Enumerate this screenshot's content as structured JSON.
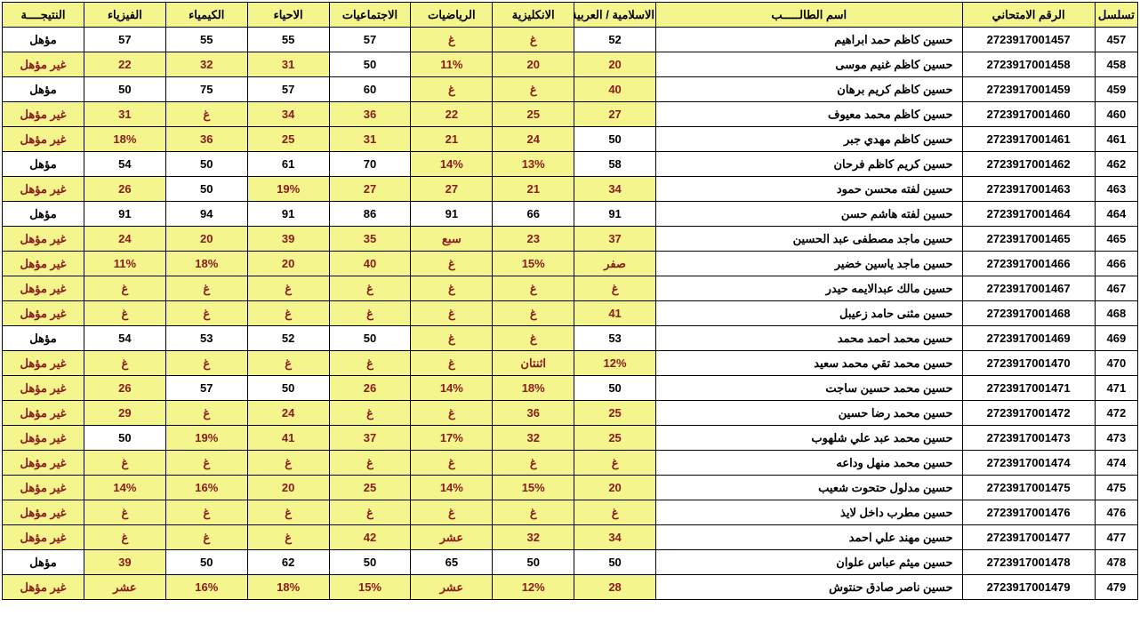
{
  "headers": {
    "serial": "تسلسل",
    "exam_no": "الرقم الامتحاني",
    "name": "اسم الطالـــــب",
    "islamic_arabic": "الاسلامية / العربية",
    "english": "الانكليزية",
    "math": "الرياضيات",
    "social": "الاجتماعيات",
    "biology": "الاحياء",
    "chemistry": "الكيمياء",
    "physics": "الفيزياء",
    "result": "النتيجــــة"
  },
  "rows": [
    {
      "serial": "457",
      "exam_no": "2723917001457",
      "name": "حسين كاظم حمد ابراهيم",
      "cells": [
        {
          "v": "52",
          "h": 0
        },
        {
          "v": "غ",
          "h": 1
        },
        {
          "v": "غ",
          "h": 1
        },
        {
          "v": "57",
          "h": 0
        },
        {
          "v": "55",
          "h": 0
        },
        {
          "v": "55",
          "h": 0
        },
        {
          "v": "57",
          "h": 0
        },
        {
          "v": "مؤهل",
          "h": 0
        }
      ]
    },
    {
      "serial": "458",
      "exam_no": "2723917001458",
      "name": "حسين كاظم غنيم موسى",
      "cells": [
        {
          "v": "20",
          "h": 1
        },
        {
          "v": "20",
          "h": 1
        },
        {
          "v": "11%",
          "h": 1
        },
        {
          "v": "50",
          "h": 0
        },
        {
          "v": "31",
          "h": 1
        },
        {
          "v": "32",
          "h": 1
        },
        {
          "v": "22",
          "h": 1
        },
        {
          "v": "غير مؤهل",
          "h": 1
        }
      ]
    },
    {
      "serial": "459",
      "exam_no": "2723917001459",
      "name": "حسين كاظم كريم برهان",
      "cells": [
        {
          "v": "40",
          "h": 1
        },
        {
          "v": "غ",
          "h": 1
        },
        {
          "v": "غ",
          "h": 1
        },
        {
          "v": "60",
          "h": 0
        },
        {
          "v": "57",
          "h": 0
        },
        {
          "v": "75",
          "h": 0
        },
        {
          "v": "50",
          "h": 0
        },
        {
          "v": "مؤهل",
          "h": 0
        }
      ]
    },
    {
      "serial": "460",
      "exam_no": "2723917001460",
      "name": "حسين كاظم محمد معيوف",
      "cells": [
        {
          "v": "27",
          "h": 1
        },
        {
          "v": "25",
          "h": 1
        },
        {
          "v": "22",
          "h": 1
        },
        {
          "v": "36",
          "h": 1
        },
        {
          "v": "34",
          "h": 1
        },
        {
          "v": "غ",
          "h": 1
        },
        {
          "v": "31",
          "h": 1
        },
        {
          "v": "غير مؤهل",
          "h": 1
        }
      ]
    },
    {
      "serial": "461",
      "exam_no": "2723917001461",
      "name": "حسين كاظم مهدي جبر",
      "cells": [
        {
          "v": "50",
          "h": 0
        },
        {
          "v": "24",
          "h": 1
        },
        {
          "v": "21",
          "h": 1
        },
        {
          "v": "31",
          "h": 1
        },
        {
          "v": "25",
          "h": 1
        },
        {
          "v": "36",
          "h": 1
        },
        {
          "v": "18%",
          "h": 1
        },
        {
          "v": "غير مؤهل",
          "h": 1
        }
      ]
    },
    {
      "serial": "462",
      "exam_no": "2723917001462",
      "name": "حسين كريم كاظم فرحان",
      "cells": [
        {
          "v": "58",
          "h": 0
        },
        {
          "v": "13%",
          "h": 1
        },
        {
          "v": "14%",
          "h": 1
        },
        {
          "v": "70",
          "h": 0
        },
        {
          "v": "61",
          "h": 0
        },
        {
          "v": "50",
          "h": 0
        },
        {
          "v": "54",
          "h": 0
        },
        {
          "v": "مؤهل",
          "h": 0
        }
      ]
    },
    {
      "serial": "463",
      "exam_no": "2723917001463",
      "name": "حسين لفته محسن حمود",
      "cells": [
        {
          "v": "34",
          "h": 1
        },
        {
          "v": "21",
          "h": 1
        },
        {
          "v": "27",
          "h": 1
        },
        {
          "v": "27",
          "h": 1
        },
        {
          "v": "19%",
          "h": 1
        },
        {
          "v": "50",
          "h": 0
        },
        {
          "v": "26",
          "h": 1
        },
        {
          "v": "غير مؤهل",
          "h": 1
        }
      ]
    },
    {
      "serial": "464",
      "exam_no": "2723917001464",
      "name": "حسين لفته هاشم حسن",
      "cells": [
        {
          "v": "91",
          "h": 0
        },
        {
          "v": "66",
          "h": 0
        },
        {
          "v": "91",
          "h": 0
        },
        {
          "v": "86",
          "h": 0
        },
        {
          "v": "91",
          "h": 0
        },
        {
          "v": "94",
          "h": 0
        },
        {
          "v": "91",
          "h": 0
        },
        {
          "v": "مؤهل",
          "h": 0
        }
      ]
    },
    {
      "serial": "465",
      "exam_no": "2723917001465",
      "name": "حسين ماجد مصطفى عبد الحسين",
      "cells": [
        {
          "v": "37",
          "h": 1
        },
        {
          "v": "23",
          "h": 1
        },
        {
          "v": "سبع",
          "h": 1
        },
        {
          "v": "35",
          "h": 1
        },
        {
          "v": "39",
          "h": 1
        },
        {
          "v": "20",
          "h": 1
        },
        {
          "v": "24",
          "h": 1
        },
        {
          "v": "غير مؤهل",
          "h": 1
        }
      ]
    },
    {
      "serial": "466",
      "exam_no": "2723917001466",
      "name": "حسين ماجد ياسين خضير",
      "cells": [
        {
          "v": "صفر",
          "h": 1
        },
        {
          "v": "15%",
          "h": 1
        },
        {
          "v": "غ",
          "h": 1
        },
        {
          "v": "40",
          "h": 1
        },
        {
          "v": "20",
          "h": 1
        },
        {
          "v": "18%",
          "h": 1
        },
        {
          "v": "11%",
          "h": 1
        },
        {
          "v": "غير مؤهل",
          "h": 1
        }
      ]
    },
    {
      "serial": "467",
      "exam_no": "2723917001467",
      "name": "حسين مالك عبدالايمه حيدر",
      "cells": [
        {
          "v": "غ",
          "h": 1
        },
        {
          "v": "غ",
          "h": 1
        },
        {
          "v": "غ",
          "h": 1
        },
        {
          "v": "غ",
          "h": 1
        },
        {
          "v": "غ",
          "h": 1
        },
        {
          "v": "غ",
          "h": 1
        },
        {
          "v": "غ",
          "h": 1
        },
        {
          "v": "غير مؤهل",
          "h": 1
        }
      ]
    },
    {
      "serial": "468",
      "exam_no": "2723917001468",
      "name": "حسين مثنى حامد زعيبل",
      "cells": [
        {
          "v": "41",
          "h": 1
        },
        {
          "v": "غ",
          "h": 1
        },
        {
          "v": "غ",
          "h": 1
        },
        {
          "v": "غ",
          "h": 1
        },
        {
          "v": "غ",
          "h": 1
        },
        {
          "v": "غ",
          "h": 1
        },
        {
          "v": "غ",
          "h": 1
        },
        {
          "v": "غير مؤهل",
          "h": 1
        }
      ]
    },
    {
      "serial": "469",
      "exam_no": "2723917001469",
      "name": "حسين محمد احمد محمد",
      "cells": [
        {
          "v": "53",
          "h": 0
        },
        {
          "v": "غ",
          "h": 1
        },
        {
          "v": "غ",
          "h": 1
        },
        {
          "v": "50",
          "h": 0
        },
        {
          "v": "52",
          "h": 0
        },
        {
          "v": "53",
          "h": 0
        },
        {
          "v": "54",
          "h": 0
        },
        {
          "v": "مؤهل",
          "h": 0
        }
      ]
    },
    {
      "serial": "470",
      "exam_no": "2723917001470",
      "name": "حسين محمد تقي محمد سعيد",
      "cells": [
        {
          "v": "12%",
          "h": 1
        },
        {
          "v": "اثنتان",
          "h": 1
        },
        {
          "v": "غ",
          "h": 1
        },
        {
          "v": "غ",
          "h": 1
        },
        {
          "v": "غ",
          "h": 1
        },
        {
          "v": "غ",
          "h": 1
        },
        {
          "v": "غ",
          "h": 1
        },
        {
          "v": "غير مؤهل",
          "h": 1
        }
      ]
    },
    {
      "serial": "471",
      "exam_no": "2723917001471",
      "name": "حسين محمد حسين ساجت",
      "cells": [
        {
          "v": "50",
          "h": 0
        },
        {
          "v": "18%",
          "h": 1
        },
        {
          "v": "14%",
          "h": 1
        },
        {
          "v": "26",
          "h": 1
        },
        {
          "v": "50",
          "h": 0
        },
        {
          "v": "57",
          "h": 0
        },
        {
          "v": "26",
          "h": 1
        },
        {
          "v": "غير مؤهل",
          "h": 1
        }
      ]
    },
    {
      "serial": "472",
      "exam_no": "2723917001472",
      "name": "حسين محمد رضا حسين",
      "cells": [
        {
          "v": "25",
          "h": 1
        },
        {
          "v": "36",
          "h": 1
        },
        {
          "v": "غ",
          "h": 1
        },
        {
          "v": "غ",
          "h": 1
        },
        {
          "v": "24",
          "h": 1
        },
        {
          "v": "غ",
          "h": 1
        },
        {
          "v": "29",
          "h": 1
        },
        {
          "v": "غير مؤهل",
          "h": 1
        }
      ]
    },
    {
      "serial": "473",
      "exam_no": "2723917001473",
      "name": "حسين محمد عبد علي شلهوب",
      "cells": [
        {
          "v": "25",
          "h": 1
        },
        {
          "v": "32",
          "h": 1
        },
        {
          "v": "17%",
          "h": 1
        },
        {
          "v": "37",
          "h": 1
        },
        {
          "v": "41",
          "h": 1
        },
        {
          "v": "19%",
          "h": 1
        },
        {
          "v": "50",
          "h": 0
        },
        {
          "v": "غير مؤهل",
          "h": 1
        }
      ]
    },
    {
      "serial": "474",
      "exam_no": "2723917001474",
      "name": "حسين محمد منهل وداعه",
      "cells": [
        {
          "v": "غ",
          "h": 1
        },
        {
          "v": "غ",
          "h": 1
        },
        {
          "v": "غ",
          "h": 1
        },
        {
          "v": "غ",
          "h": 1
        },
        {
          "v": "غ",
          "h": 1
        },
        {
          "v": "غ",
          "h": 1
        },
        {
          "v": "غ",
          "h": 1
        },
        {
          "v": "غير مؤهل",
          "h": 1
        }
      ]
    },
    {
      "serial": "475",
      "exam_no": "2723917001475",
      "name": "حسين مدلول حتحوت شعيب",
      "cells": [
        {
          "v": "20",
          "h": 1
        },
        {
          "v": "15%",
          "h": 1
        },
        {
          "v": "14%",
          "h": 1
        },
        {
          "v": "25",
          "h": 1
        },
        {
          "v": "20",
          "h": 1
        },
        {
          "v": "16%",
          "h": 1
        },
        {
          "v": "14%",
          "h": 1
        },
        {
          "v": "غير مؤهل",
          "h": 1
        }
      ]
    },
    {
      "serial": "476",
      "exam_no": "2723917001476",
      "name": "حسين مطرب داخل لايذ",
      "cells": [
        {
          "v": "غ",
          "h": 1
        },
        {
          "v": "غ",
          "h": 1
        },
        {
          "v": "غ",
          "h": 1
        },
        {
          "v": "غ",
          "h": 1
        },
        {
          "v": "غ",
          "h": 1
        },
        {
          "v": "غ",
          "h": 1
        },
        {
          "v": "غ",
          "h": 1
        },
        {
          "v": "غير مؤهل",
          "h": 1
        }
      ]
    },
    {
      "serial": "477",
      "exam_no": "2723917001477",
      "name": "حسين مهند علي احمد",
      "cells": [
        {
          "v": "34",
          "h": 1
        },
        {
          "v": "32",
          "h": 1
        },
        {
          "v": "عشر",
          "h": 1
        },
        {
          "v": "42",
          "h": 1
        },
        {
          "v": "غ",
          "h": 1
        },
        {
          "v": "غ",
          "h": 1
        },
        {
          "v": "غ",
          "h": 1
        },
        {
          "v": "غير مؤهل",
          "h": 1
        }
      ]
    },
    {
      "serial": "478",
      "exam_no": "2723917001478",
      "name": "حسين ميثم عباس علوان",
      "cells": [
        {
          "v": "50",
          "h": 0
        },
        {
          "v": "50",
          "h": 0
        },
        {
          "v": "65",
          "h": 0
        },
        {
          "v": "50",
          "h": 0
        },
        {
          "v": "62",
          "h": 0
        },
        {
          "v": "50",
          "h": 0
        },
        {
          "v": "39",
          "h": 1
        },
        {
          "v": "مؤهل",
          "h": 0
        }
      ]
    },
    {
      "serial": "479",
      "exam_no": "2723917001479",
      "name": "حسين ناصر صادق حنتوش",
      "cells": [
        {
          "v": "28",
          "h": 1
        },
        {
          "v": "12%",
          "h": 1
        },
        {
          "v": "عشر",
          "h": 1
        },
        {
          "v": "15%",
          "h": 1
        },
        {
          "v": "18%",
          "h": 1
        },
        {
          "v": "16%",
          "h": 1
        },
        {
          "v": "عشر",
          "h": 1
        },
        {
          "v": "غير مؤهل",
          "h": 1
        }
      ]
    }
  ],
  "style": {
    "header_bg": "#f5f58e",
    "highlight_bg": "#f5f58e",
    "highlight_fg": "#8a1a1a",
    "normal_bg": "#ffffff",
    "normal_fg": "#000000",
    "border_color": "#000000"
  }
}
